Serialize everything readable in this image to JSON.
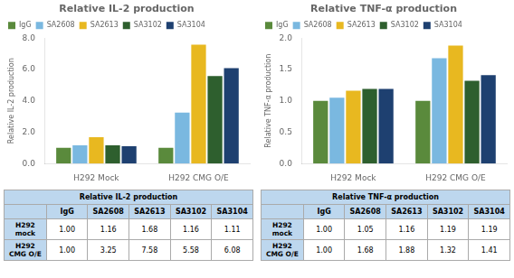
{
  "chart_data": [
    {
      "type": "bar",
      "title": "Relative IL-2 production",
      "y_label": "Relative IL-2 production",
      "categories": [
        "H292 Mock",
        "H292 CMG O/E"
      ],
      "series": [
        {
          "name": "IgG",
          "color": "#5a8a3c",
          "values": [
            1.0,
            1.0
          ]
        },
        {
          "name": "SA2608",
          "color": "#7ab8e0",
          "values": [
            1.16,
            3.25
          ]
        },
        {
          "name": "SA2613",
          "color": "#e8b820",
          "values": [
            1.68,
            7.58
          ]
        },
        {
          "name": "SA3102",
          "color": "#2e5f2e",
          "values": [
            1.16,
            5.58
          ]
        },
        {
          "name": "SA3104",
          "color": "#1e4070",
          "values": [
            1.11,
            6.08
          ]
        }
      ],
      "ylim": [
        0,
        8.0
      ],
      "yticks": [
        {
          "value": 0.0,
          "label": "0.0"
        },
        {
          "value": 2.0,
          "label": "2.0"
        },
        {
          "value": 4.0,
          "label": "4.0"
        },
        {
          "value": 6.0,
          "label": "6.0"
        },
        {
          "value": 8.0,
          "label": "8.0"
        }
      ],
      "grid": false,
      "legend": "upper left",
      "table": {
        "title": "Relative IL-2 production",
        "color": "#bdd7ee",
        "columns": [
          "IgG",
          "SA2608",
          "SA2613",
          "SA3102",
          "SA3104"
        ],
        "rows": [
          "H292\nmock",
          "H292\nCMG O/E"
        ],
        "values": [
          [
            1.0,
            1.16,
            1.68,
            1.16,
            1.11
          ],
          [
            1.0,
            3.25,
            7.58,
            5.58,
            6.08
          ]
        ],
        "value_labels": [
          [
            "1.00",
            "1.16",
            "1.68",
            "1.16",
            "1.11"
          ],
          [
            "1.00",
            "3.25",
            "7.58",
            "5.58",
            "6.08"
          ]
        ]
      }
    },
    {
      "type": "bar",
      "title": "Relative TNF-α production",
      "y_label": "Relative TNF-α production",
      "categories": [
        "H292 Mock",
        "H292 CMG O/E"
      ],
      "series": [
        {
          "name": "IgG",
          "color": "#5a8a3c",
          "values": [
            1.0,
            1.0
          ]
        },
        {
          "name": "SA2608",
          "color": "#7ab8e0",
          "values": [
            1.05,
            1.68
          ]
        },
        {
          "name": "SA2613",
          "color": "#e8b820",
          "values": [
            1.16,
            1.88
          ]
        },
        {
          "name": "SA3102",
          "color": "#2e5f2e",
          "values": [
            1.19,
            1.32
          ]
        },
        {
          "name": "SA3104",
          "color": "#1e4070",
          "values": [
            1.19,
            1.41
          ]
        }
      ],
      "ylim": [
        0,
        2.0
      ],
      "yticks": [
        {
          "value": 0.0,
          "label": "0.0"
        },
        {
          "value": 0.5,
          "label": "0.5"
        },
        {
          "value": 1.0,
          "label": "1.0"
        },
        {
          "value": 1.5,
          "label": "1.5"
        },
        {
          "value": 2.0,
          "label": "2.0"
        }
      ],
      "grid": false,
      "legend": "upper left",
      "table": {
        "title": "Relative TNF-α production",
        "color": "#bdd7ee",
        "columns": [
          "IgG",
          "SA2608",
          "SA2613",
          "SA3102",
          "SA3104"
        ],
        "rows": [
          "H292\nmock",
          "H292\nCMG O/E"
        ],
        "values": [
          [
            1.0,
            1.05,
            1.16,
            1.19,
            1.19
          ],
          [
            1.0,
            1.68,
            1.88,
            1.32,
            1.41
          ]
        ],
        "value_labels": [
          [
            "1.00",
            "1.05",
            "1.16",
            "1.19",
            "1.19"
          ],
          [
            "1.00",
            "1.68",
            "1.88",
            "1.32",
            "1.41"
          ]
        ]
      }
    }
  ]
}
